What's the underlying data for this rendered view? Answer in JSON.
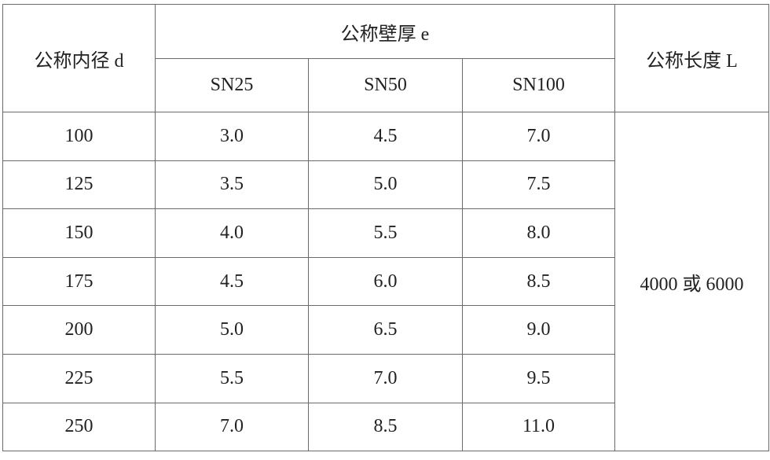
{
  "header": {
    "diameter": "公称内径 d",
    "wall_thickness": "公称壁厚 e",
    "length": "公称长度 L",
    "classes": [
      "SN25",
      "SN50",
      "SN100"
    ]
  },
  "rows": [
    {
      "d": "100",
      "sn25": "3.0",
      "sn50": "4.5",
      "sn100": "7.0"
    },
    {
      "d": "125",
      "sn25": "3.5",
      "sn50": "5.0",
      "sn100": "7.5"
    },
    {
      "d": "150",
      "sn25": "4.0",
      "sn50": "5.5",
      "sn100": "8.0"
    },
    {
      "d": "175",
      "sn25": "4.5",
      "sn50": "6.0",
      "sn100": "8.5"
    },
    {
      "d": "200",
      "sn25": "5.0",
      "sn50": "6.5",
      "sn100": "9.0"
    },
    {
      "d": "225",
      "sn25": "5.5",
      "sn50": "7.0",
      "sn100": "9.5"
    },
    {
      "d": "250",
      "sn25": "7.0",
      "sn50": "8.5",
      "sn100": "11.0"
    }
  ],
  "length_value": "4000 或 6000"
}
